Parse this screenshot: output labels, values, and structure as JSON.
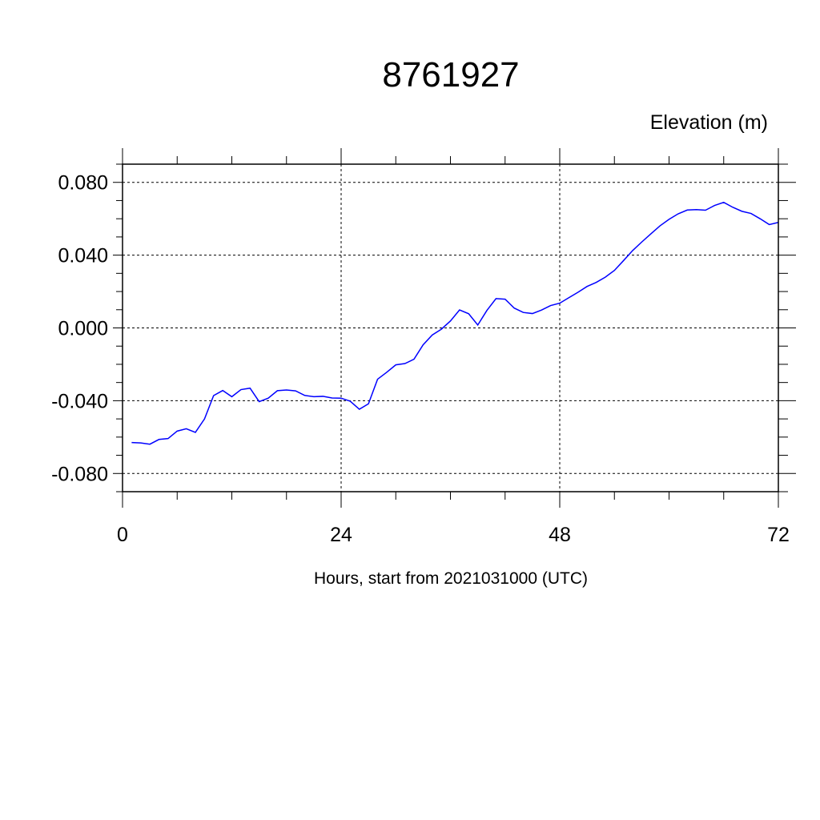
{
  "chart_data": {
    "type": "line",
    "title": "8761927",
    "ylabel": "Elevation (m)",
    "xlabel": "Hours, start from 2021031000 (UTC)",
    "xlim": [
      0,
      72
    ],
    "ylim": [
      -0.09,
      0.09
    ],
    "xticks": [
      0,
      24,
      48,
      72
    ],
    "xtick_labels": [
      "0",
      "24",
      "48",
      "72"
    ],
    "yticks": [
      0.08,
      0.04,
      0.0,
      -0.04,
      -0.08
    ],
    "ytick_labels": [
      "0.080",
      "0.040",
      "0.000",
      "-0.040",
      "-0.080"
    ],
    "grid": true,
    "line_color": "#0000ff",
    "series": [
      {
        "x": [
          1,
          2,
          3,
          4,
          5,
          6,
          7,
          8,
          9,
          10,
          11,
          12,
          13,
          14,
          15,
          16,
          17,
          18,
          19,
          20,
          21,
          22,
          23,
          24,
          25,
          26,
          27,
          28,
          29,
          30,
          31,
          32,
          33,
          34,
          35,
          36,
          37,
          38,
          39,
          40,
          41,
          42,
          43,
          44,
          45,
          46,
          47,
          48,
          49,
          50,
          51,
          52,
          53,
          54,
          55,
          56,
          57,
          58,
          59,
          60,
          61,
          62,
          63,
          64,
          65,
          66,
          67,
          68,
          69,
          70,
          71,
          72
        ],
        "values": [
          -0.063,
          -0.0632,
          -0.0639,
          -0.0613,
          -0.0608,
          -0.0567,
          -0.0554,
          -0.0574,
          -0.05,
          -0.0372,
          -0.0344,
          -0.0378,
          -0.0339,
          -0.0331,
          -0.0405,
          -0.0386,
          -0.0345,
          -0.0341,
          -0.0346,
          -0.0371,
          -0.0378,
          -0.0376,
          -0.0385,
          -0.0386,
          -0.0403,
          -0.0447,
          -0.0417,
          -0.0282,
          -0.0244,
          -0.0203,
          -0.0196,
          -0.0172,
          -0.0093,
          -0.0039,
          -0.0007,
          0.0038,
          0.0099,
          0.0078,
          0.0016,
          0.0096,
          0.0161,
          0.0158,
          0.0109,
          0.0085,
          0.0079,
          0.0098,
          0.0123,
          0.0136,
          0.0166,
          0.0196,
          0.0228,
          0.025,
          0.0279,
          0.0316,
          0.037,
          0.0425,
          0.0472,
          0.0517,
          0.0561,
          0.0597,
          0.0627,
          0.0648,
          0.065,
          0.0647,
          0.0673,
          0.069,
          0.0663,
          0.0641,
          0.0629,
          0.06,
          0.0568,
          0.058
        ]
      }
    ]
  }
}
